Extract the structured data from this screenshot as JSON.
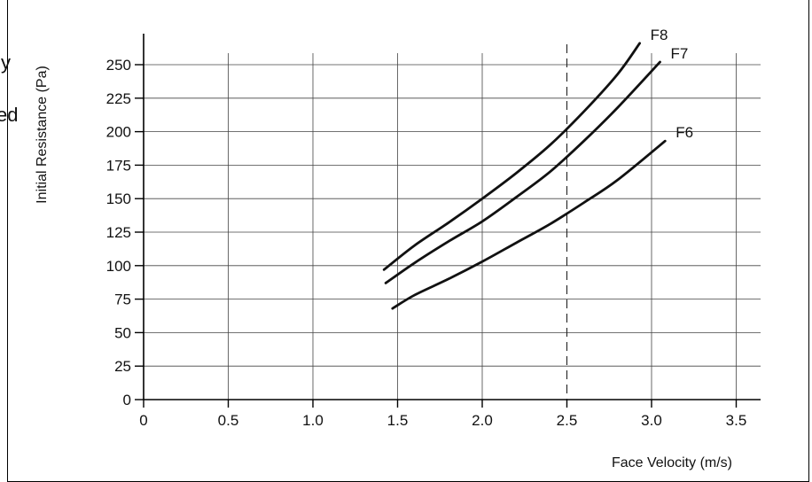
{
  "page": {
    "fragments": [
      "y",
      "ed"
    ]
  },
  "chart_data": {
    "type": "line",
    "title": "",
    "xlabel": "Face Velocity  (m/s)",
    "ylabel": "Initial Resistance  (Pa)",
    "xlim": [
      0,
      3.6
    ],
    "ylim": [
      0,
      270
    ],
    "xticks": [
      0,
      0.5,
      1.0,
      1.5,
      2.0,
      2.5,
      3.0,
      3.5
    ],
    "xtick_labels": [
      "0",
      "0.5",
      "1.0",
      "1.5",
      "2.0",
      "2.5",
      "3.0",
      "3.5"
    ],
    "yticks": [
      0,
      25,
      50,
      75,
      100,
      125,
      150,
      175,
      200,
      225,
      250
    ],
    "ytick_labels": [
      "0",
      "25",
      "50",
      "75",
      "100",
      "125",
      "150",
      "175",
      "200",
      "225",
      "250"
    ],
    "grid": true,
    "reference_line": {
      "x": 2.5,
      "style": "dashed"
    },
    "series": [
      {
        "name": "F8",
        "x": [
          1.42,
          1.6,
          1.8,
          2.0,
          2.2,
          2.4,
          2.6,
          2.8,
          2.93
        ],
        "y": [
          97,
          115,
          132,
          150,
          169,
          190,
          215,
          243,
          266
        ]
      },
      {
        "name": "F7",
        "x": [
          1.43,
          1.6,
          1.8,
          2.0,
          2.2,
          2.4,
          2.6,
          2.8,
          3.05
        ],
        "y": [
          87,
          102,
          118,
          133,
          151,
          170,
          193,
          218,
          252
        ]
      },
      {
        "name": "F6",
        "x": [
          1.47,
          1.6,
          1.8,
          2.0,
          2.2,
          2.4,
          2.6,
          2.8,
          3.08
        ],
        "y": [
          68,
          78,
          90,
          103,
          117,
          131,
          147,
          164,
          193
        ]
      }
    ]
  }
}
